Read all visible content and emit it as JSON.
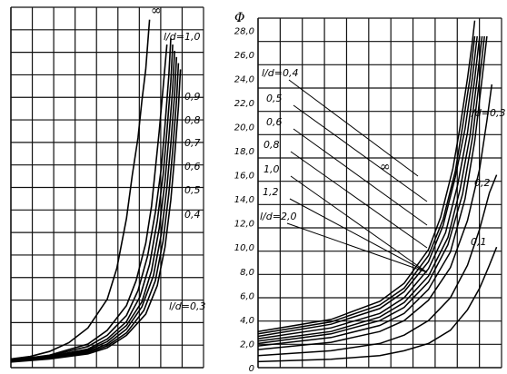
{
  "chart_data": [
    {
      "type": "line",
      "title": "",
      "xlabel": "",
      "ylabel": "",
      "infinity_label": "∞",
      "series": [
        {
          "name": "l/d=1,0",
          "label_text": "l/d=1,0",
          "values": [
            [
              0.0,
              0.7
            ],
            [
              0.1,
              0.9
            ],
            [
              0.2,
              1.3
            ],
            [
              0.3,
              2.0
            ],
            [
              0.4,
              3.2
            ],
            [
              0.5,
              5.5
            ],
            [
              0.55,
              8.0
            ],
            [
              0.6,
              12.0
            ],
            [
              0.63,
              15.5
            ],
            [
              0.66,
              18.5
            ],
            [
              0.68,
              21.5
            ],
            [
              0.7,
              24.0
            ],
            [
              0.72,
              28.0
            ]
          ]
        },
        {
          "name": "0,9",
          "label_text": "0,9",
          "values": [
            [
              0.0,
              0.6
            ],
            [
              0.2,
              1.0
            ],
            [
              0.4,
              1.9
            ],
            [
              0.5,
              3.0
            ],
            [
              0.6,
              5.0
            ],
            [
              0.65,
              7.0
            ],
            [
              0.7,
              10.0
            ],
            [
              0.73,
              13.0
            ],
            [
              0.75,
              16.0
            ],
            [
              0.77,
              19.0
            ],
            [
              0.79,
              22.5
            ],
            [
              0.81,
              26.0
            ]
          ]
        },
        {
          "name": "0,8",
          "label_text": "0,8",
          "values": [
            [
              0.0,
              0.6
            ],
            [
              0.2,
              0.95
            ],
            [
              0.4,
              1.7
            ],
            [
              0.5,
              2.6
            ],
            [
              0.6,
              4.2
            ],
            [
              0.66,
              6.2
            ],
            [
              0.71,
              9.0
            ],
            [
              0.75,
              12.5
            ],
            [
              0.78,
              16.0
            ],
            [
              0.8,
              19.5
            ],
            [
              0.82,
              23.5
            ],
            [
              0.83,
              26.5
            ]
          ]
        },
        {
          "name": "0,7",
          "label_text": "0,7",
          "values": [
            [
              0.0,
              0.55
            ],
            [
              0.2,
              0.9
            ],
            [
              0.4,
              1.5
            ],
            [
              0.5,
              2.3
            ],
            [
              0.6,
              3.7
            ],
            [
              0.67,
              5.7
            ],
            [
              0.72,
              8.3
            ],
            [
              0.76,
              11.8
            ],
            [
              0.79,
              15.5
            ],
            [
              0.81,
              19.0
            ],
            [
              0.83,
              23.0
            ],
            [
              0.84,
              26.0
            ]
          ]
        },
        {
          "name": "0,6",
          "label_text": "0,6",
          "values": [
            [
              0.0,
              0.55
            ],
            [
              0.2,
              0.85
            ],
            [
              0.4,
              1.4
            ],
            [
              0.5,
              2.1
            ],
            [
              0.6,
              3.4
            ],
            [
              0.68,
              5.3
            ],
            [
              0.73,
              7.8
            ],
            [
              0.77,
              11.2
            ],
            [
              0.8,
              15.0
            ],
            [
              0.82,
              18.5
            ],
            [
              0.84,
              22.5
            ],
            [
              0.85,
              25.5
            ]
          ]
        },
        {
          "name": "0,5",
          "label_text": "0,5",
          "values": [
            [
              0.0,
              0.5
            ],
            [
              0.2,
              0.8
            ],
            [
              0.4,
              1.3
            ],
            [
              0.5,
              1.9
            ],
            [
              0.6,
              3.1
            ],
            [
              0.68,
              4.9
            ],
            [
              0.74,
              7.4
            ],
            [
              0.78,
              10.7
            ],
            [
              0.81,
              14.5
            ],
            [
              0.83,
              18.0
            ],
            [
              0.85,
              22.0
            ],
            [
              0.86,
              25.0
            ]
          ]
        },
        {
          "name": "0,4",
          "label_text": "0,4",
          "values": [
            [
              0.0,
              0.5
            ],
            [
              0.2,
              0.75
            ],
            [
              0.4,
              1.2
            ],
            [
              0.5,
              1.75
            ],
            [
              0.6,
              2.8
            ],
            [
              0.69,
              4.6
            ],
            [
              0.75,
              7.0
            ],
            [
              0.79,
              10.2
            ],
            [
              0.82,
              14.0
            ],
            [
              0.84,
              17.5
            ],
            [
              0.86,
              21.5
            ],
            [
              0.87,
              24.5
            ]
          ]
        },
        {
          "name": "l/d=0,3",
          "label_text": "l/d=0,3",
          "values": [
            [
              0.0,
              0.45
            ],
            [
              0.2,
              0.7
            ],
            [
              0.4,
              1.1
            ],
            [
              0.5,
              1.6
            ],
            [
              0.6,
              2.6
            ],
            [
              0.7,
              4.3
            ],
            [
              0.76,
              6.6
            ],
            [
              0.8,
              9.7
            ],
            [
              0.83,
              13.5
            ],
            [
              0.85,
              17.0
            ],
            [
              0.87,
              21.0
            ],
            [
              0.88,
              24.0
            ]
          ]
        }
      ]
    },
    {
      "type": "line",
      "title": "",
      "xlabel": "",
      "ylabel": "Φ",
      "infinity_label": "∞",
      "ylim": [
        0,
        29
      ],
      "yticks": [
        0,
        2.0,
        4.0,
        6.0,
        8.0,
        10.0,
        12.0,
        14.0,
        16.0,
        18.0,
        20.0,
        22.0,
        24.0,
        26.0,
        28.0
      ],
      "ytick_labels": [
        "0",
        "2,0",
        "4,0",
        "6,0",
        "8,0",
        "10,0",
        "12,0",
        "14,0",
        "16,0",
        "18,0",
        "20,0",
        "22,0",
        "24,0",
        "26,0",
        "28,0"
      ],
      "series": [
        {
          "name": "l/d=0,4",
          "label_text": "l/d=0,4",
          "values": [
            [
              0.0,
              3.0
            ],
            [
              0.3,
              4.0
            ],
            [
              0.5,
              5.5
            ],
            [
              0.6,
              7.0
            ],
            [
              0.7,
              9.8
            ],
            [
              0.75,
              12.5
            ],
            [
              0.8,
              16.5
            ],
            [
              0.83,
              20.0
            ],
            [
              0.86,
              24.0
            ],
            [
              0.88,
              27.0
            ],
            [
              0.89,
              28.8
            ]
          ]
        },
        {
          "name": "0,5",
          "label_text": "0,5",
          "values": [
            [
              0.0,
              2.8
            ],
            [
              0.3,
              3.8
            ],
            [
              0.5,
              5.2
            ],
            [
              0.6,
              6.6
            ],
            [
              0.7,
              9.3
            ],
            [
              0.76,
              12.3
            ],
            [
              0.81,
              16.3
            ],
            [
              0.84,
              20.0
            ],
            [
              0.87,
              24.0
            ],
            [
              0.89,
              27.5
            ]
          ]
        },
        {
          "name": "0,6",
          "label_text": "0,6",
          "values": [
            [
              0.0,
              2.6
            ],
            [
              0.3,
              3.6
            ],
            [
              0.5,
              4.9
            ],
            [
              0.6,
              6.3
            ],
            [
              0.7,
              8.8
            ],
            [
              0.76,
              11.8
            ],
            [
              0.81,
              15.8
            ],
            [
              0.85,
              19.8
            ],
            [
              0.88,
              24.0
            ],
            [
              0.9,
              27.5
            ]
          ]
        },
        {
          "name": "0,8",
          "label_text": "0,8",
          "values": [
            [
              0.0,
              2.4
            ],
            [
              0.3,
              3.3
            ],
            [
              0.5,
              4.5
            ],
            [
              0.6,
              5.8
            ],
            [
              0.7,
              8.2
            ],
            [
              0.77,
              11.2
            ],
            [
              0.82,
              15.2
            ],
            [
              0.86,
              19.5
            ],
            [
              0.89,
              24.0
            ],
            [
              0.91,
              27.5
            ]
          ]
        },
        {
          "name": "1,0",
          "label_text": "1,0",
          "values": [
            [
              0.0,
              2.2
            ],
            [
              0.3,
              3.0
            ],
            [
              0.5,
              4.2
            ],
            [
              0.6,
              5.4
            ],
            [
              0.7,
              7.6
            ],
            [
              0.78,
              10.8
            ],
            [
              0.83,
              14.8
            ],
            [
              0.87,
              19.2
            ],
            [
              0.9,
              24.0
            ],
            [
              0.92,
              27.5
            ]
          ]
        },
        {
          "name": "1,2",
          "label_text": "1,2",
          "values": [
            [
              0.0,
              2.0
            ],
            [
              0.3,
              2.8
            ],
            [
              0.5,
              3.9
            ],
            [
              0.6,
              5.0
            ],
            [
              0.7,
              7.1
            ],
            [
              0.78,
              10.2
            ],
            [
              0.84,
              14.4
            ],
            [
              0.88,
              19.0
            ],
            [
              0.91,
              24.0
            ],
            [
              0.93,
              27.5
            ]
          ]
        },
        {
          "name": "l/d=2,0",
          "label_text": "l/d=2,0",
          "values": [
            [
              0.0,
              1.8
            ],
            [
              0.3,
              2.5
            ],
            [
              0.5,
              3.5
            ],
            [
              0.6,
              4.5
            ],
            [
              0.7,
              6.5
            ],
            [
              0.79,
              9.6
            ],
            [
              0.85,
              14.0
            ],
            [
              0.89,
              18.8
            ],
            [
              0.92,
              24.0
            ],
            [
              0.94,
              27.5
            ]
          ]
        },
        {
          "name": "l/d=0,3",
          "label_text": "l/d=0,3",
          "values": [
            [
              0.0,
              1.5
            ],
            [
              0.3,
              2.1
            ],
            [
              0.5,
              3.0
            ],
            [
              0.6,
              3.9
            ],
            [
              0.7,
              5.6
            ],
            [
              0.79,
              8.3
            ],
            [
              0.86,
              12.2
            ],
            [
              0.91,
              16.5
            ],
            [
              0.94,
              20.5
            ],
            [
              0.96,
              23.5
            ]
          ]
        },
        {
          "name": "0,2",
          "label_text": "0,2",
          "values": [
            [
              0.0,
              1.0
            ],
            [
              0.3,
              1.4
            ],
            [
              0.5,
              2.0
            ],
            [
              0.6,
              2.7
            ],
            [
              0.7,
              3.9
            ],
            [
              0.79,
              5.8
            ],
            [
              0.86,
              8.5
            ],
            [
              0.91,
              11.5
            ],
            [
              0.95,
              14.5
            ],
            [
              0.98,
              16.0
            ]
          ]
        },
        {
          "name": "0,1",
          "label_text": "0,1",
          "values": [
            [
              0.0,
              0.5
            ],
            [
              0.3,
              0.7
            ],
            [
              0.5,
              1.0
            ],
            [
              0.6,
              1.4
            ],
            [
              0.7,
              2.0
            ],
            [
              0.79,
              3.1
            ],
            [
              0.86,
              4.8
            ],
            [
              0.91,
              6.6
            ],
            [
              0.95,
              8.5
            ],
            [
              0.98,
              10.0
            ]
          ]
        }
      ]
    }
  ]
}
